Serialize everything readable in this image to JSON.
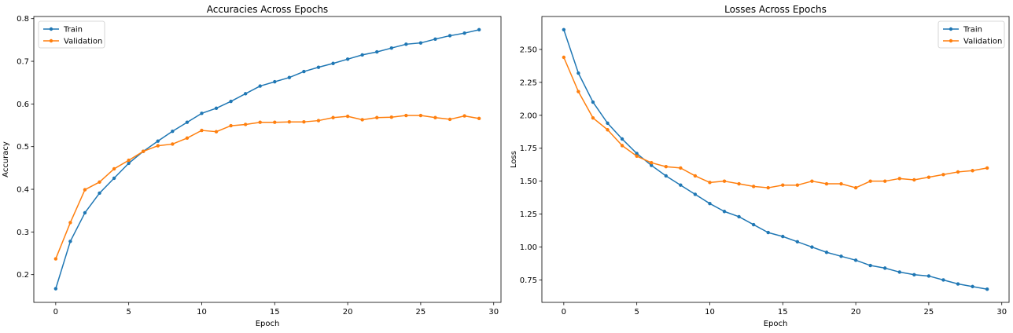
{
  "chart_data": [
    {
      "type": "line",
      "title": "Accuracies Across Epochs",
      "xlabel": "Epoch",
      "ylabel": "Accuracy",
      "xlim": [
        -1.5,
        30.5
      ],
      "ylim": [
        0.135,
        0.805
      ],
      "xticks": [
        0,
        5,
        10,
        15,
        20,
        25,
        30
      ],
      "yticks": [
        0.2,
        0.3,
        0.4,
        0.5,
        0.6,
        0.7,
        0.8
      ],
      "ytick_decimals": 1,
      "grid": false,
      "legend_position": "top-left",
      "x": [
        0,
        1,
        2,
        3,
        4,
        5,
        6,
        7,
        8,
        9,
        10,
        11,
        12,
        13,
        14,
        15,
        16,
        17,
        18,
        19,
        20,
        21,
        22,
        23,
        24,
        25,
        26,
        27,
        28,
        29
      ],
      "series": [
        {
          "name": "Train",
          "color": "#1f77b4",
          "values": [
            0.167,
            0.278,
            0.345,
            0.391,
            0.426,
            0.461,
            0.489,
            0.513,
            0.536,
            0.557,
            0.578,
            0.59,
            0.606,
            0.624,
            0.642,
            0.652,
            0.662,
            0.676,
            0.686,
            0.695,
            0.705,
            0.715,
            0.722,
            0.731,
            0.74,
            0.743,
            0.752,
            0.76,
            0.766,
            0.774
          ]
        },
        {
          "name": "Validation",
          "color": "#ff7f0e",
          "values": [
            0.237,
            0.322,
            0.399,
            0.417,
            0.448,
            0.468,
            0.489,
            0.502,
            0.506,
            0.52,
            0.538,
            0.535,
            0.549,
            0.552,
            0.557,
            0.557,
            0.558,
            0.558,
            0.561,
            0.568,
            0.571,
            0.563,
            0.568,
            0.569,
            0.573,
            0.573,
            0.568,
            0.564,
            0.572,
            0.566
          ]
        }
      ]
    },
    {
      "type": "line",
      "title": "Losses Across Epochs",
      "xlabel": "Epoch",
      "ylabel": "Loss",
      "xlim": [
        -1.5,
        30.5
      ],
      "ylim": [
        0.58,
        2.75
      ],
      "xticks": [
        0,
        5,
        10,
        15,
        20,
        25,
        30
      ],
      "yticks": [
        0.75,
        1.0,
        1.25,
        1.5,
        1.75,
        2.0,
        2.25,
        2.5
      ],
      "ytick_decimals": 2,
      "grid": false,
      "legend_position": "top-right",
      "x": [
        0,
        1,
        2,
        3,
        4,
        5,
        6,
        7,
        8,
        9,
        10,
        11,
        12,
        13,
        14,
        15,
        16,
        17,
        18,
        19,
        20,
        21,
        22,
        23,
        24,
        25,
        26,
        27,
        28,
        29
      ],
      "series": [
        {
          "name": "Train",
          "color": "#1f77b4",
          "values": [
            2.65,
            2.32,
            2.1,
            1.94,
            1.82,
            1.71,
            1.62,
            1.54,
            1.47,
            1.4,
            1.33,
            1.27,
            1.23,
            1.17,
            1.11,
            1.08,
            1.04,
            1.0,
            0.96,
            0.93,
            0.9,
            0.86,
            0.84,
            0.81,
            0.79,
            0.78,
            0.75,
            0.72,
            0.7,
            0.68
          ]
        },
        {
          "name": "Validation",
          "color": "#ff7f0e",
          "values": [
            2.44,
            2.18,
            1.98,
            1.89,
            1.77,
            1.69,
            1.64,
            1.61,
            1.6,
            1.54,
            1.49,
            1.5,
            1.48,
            1.46,
            1.45,
            1.47,
            1.47,
            1.5,
            1.48,
            1.48,
            1.45,
            1.5,
            1.5,
            1.52,
            1.51,
            1.53,
            1.55,
            1.57,
            1.58,
            1.6
          ]
        }
      ]
    }
  ]
}
